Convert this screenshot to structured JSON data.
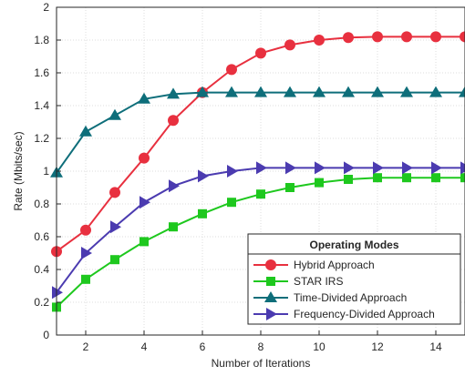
{
  "chart_data": {
    "type": "line",
    "title": "",
    "xlabel": "Number of Iterations",
    "ylabel": "Rate (Mbits/sec)",
    "xlim": [
      1,
      15
    ],
    "ylim": [
      0,
      2
    ],
    "xticks": [
      2,
      4,
      6,
      8,
      10,
      12,
      14
    ],
    "yticks": [
      0,
      0.2,
      0.4,
      0.6,
      0.8,
      1,
      1.2,
      1.4,
      1.6,
      1.8,
      2
    ],
    "grid": true,
    "legend": {
      "title": "Operating Modes",
      "placement": "bottom-right"
    },
    "x": [
      1,
      2,
      3,
      4,
      5,
      6,
      7,
      8,
      9,
      10,
      11,
      12,
      13,
      14,
      15
    ],
    "series": [
      {
        "name": "Hybrid Approach",
        "color": "#e8303f",
        "marker": "circle",
        "values": [
          0.51,
          0.64,
          0.87,
          1.08,
          1.31,
          1.48,
          1.62,
          1.72,
          1.77,
          1.8,
          1.815,
          1.82,
          1.82,
          1.82,
          1.82
        ]
      },
      {
        "name": "STAR IRS",
        "color": "#1ec81e",
        "marker": "square",
        "values": [
          0.17,
          0.34,
          0.46,
          0.57,
          0.66,
          0.74,
          0.81,
          0.86,
          0.9,
          0.93,
          0.95,
          0.96,
          0.96,
          0.96,
          0.96
        ]
      },
      {
        "name": "Time-Divided Approach",
        "color": "#0e6e7a",
        "marker": "triangle-up",
        "values": [
          0.99,
          1.24,
          1.34,
          1.44,
          1.47,
          1.48,
          1.48,
          1.48,
          1.48,
          1.48,
          1.48,
          1.48,
          1.48,
          1.48,
          1.48
        ]
      },
      {
        "name": "Frequency-Divided Approach",
        "color": "#4b3bb0",
        "marker": "triangle-right",
        "values": [
          0.26,
          0.5,
          0.66,
          0.81,
          0.91,
          0.97,
          1.0,
          1.02,
          1.02,
          1.02,
          1.02,
          1.02,
          1.02,
          1.02,
          1.02
        ]
      }
    ]
  }
}
